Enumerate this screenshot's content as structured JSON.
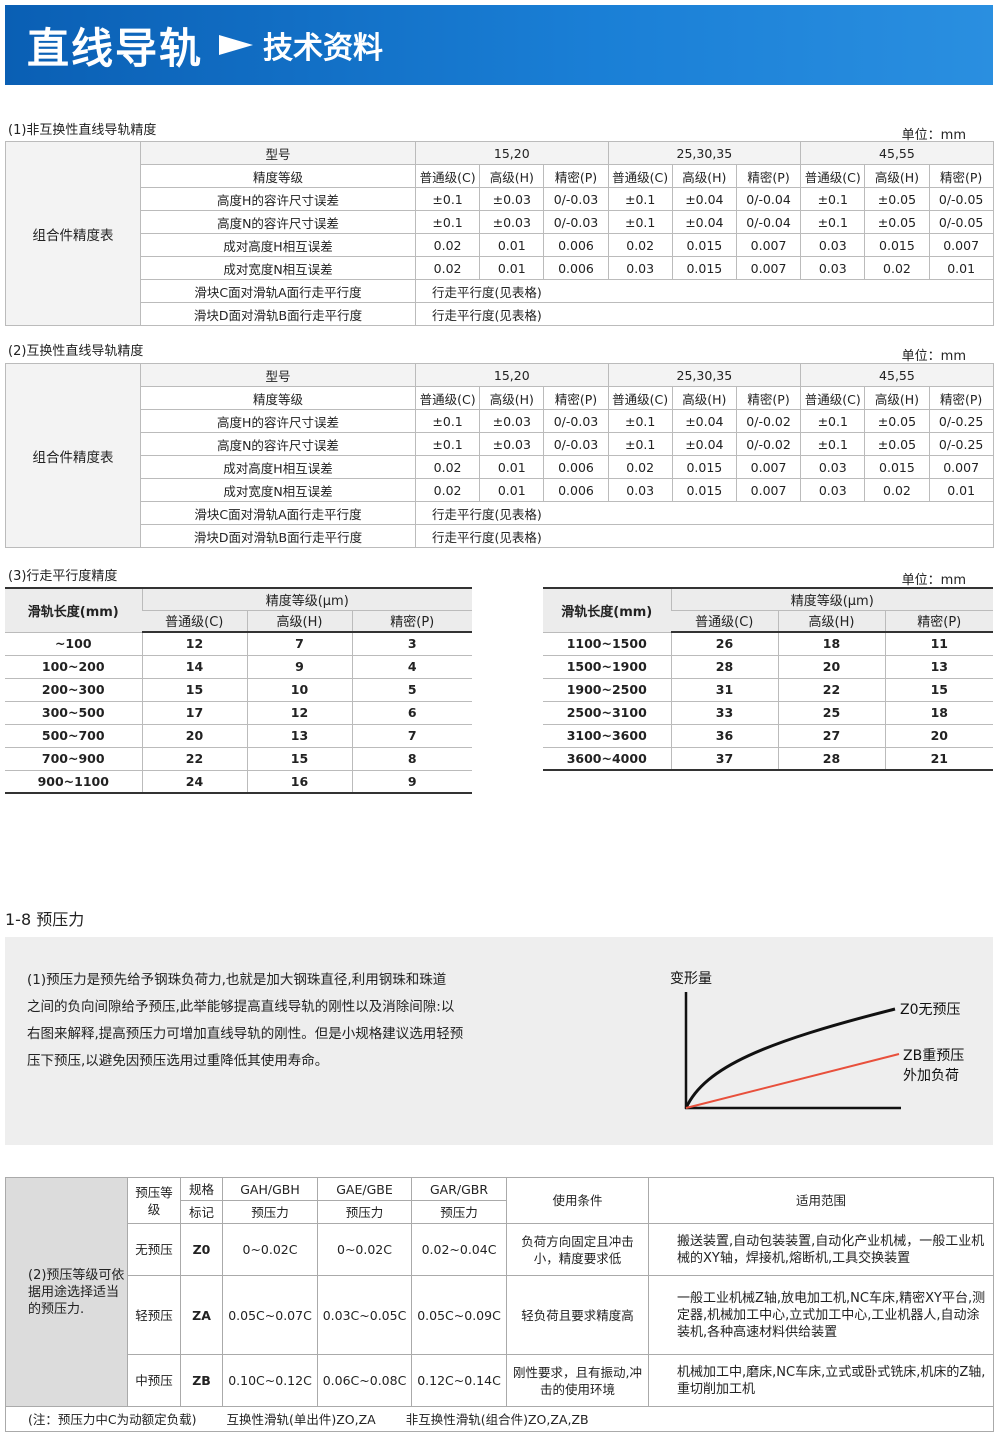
{
  "header": {
    "title": "直线导轨",
    "subtitle": "技术资料",
    "color": "#0a5fb4"
  },
  "unit": "单位：mm",
  "table1": {
    "caption": "(1)非互换性直线导轨精度",
    "side": "组合件精度表",
    "model_label": "型号",
    "models": [
      "15,20",
      "25,30,35",
      "45,55"
    ],
    "grade_label": "精度等级",
    "grades": [
      "普通级(C)",
      "高级(H)",
      "精密(P)",
      "普通级(C)",
      "高级(H)",
      "精密(P)",
      "普通级(C)",
      "高级(H)",
      "精密(P)"
    ],
    "rows": [
      {
        "label": "高度H的容许尺寸误差",
        "values": [
          "±0.1",
          "±0.03",
          "0/-0.03",
          "±0.1",
          "±0.04",
          "0/-0.04",
          "±0.1",
          "±0.05",
          "0/-0.05"
        ]
      },
      {
        "label": "高度N的容许尺寸误差",
        "values": [
          "±0.1",
          "±0.03",
          "0/-0.03",
          "±0.1",
          "±0.04",
          "0/-0.04",
          "±0.1",
          "±0.05",
          "0/-0.05"
        ]
      },
      {
        "label": "成对高度H相互误差",
        "values": [
          "0.02",
          "0.01",
          "0.006",
          "0.02",
          "0.015",
          "0.007",
          "0.03",
          "0.015",
          "0.007"
        ]
      },
      {
        "label": "成对宽度N相互误差",
        "values": [
          "0.02",
          "0.01",
          "0.006",
          "0.03",
          "0.015",
          "0.007",
          "0.03",
          "0.02",
          "0.01"
        ]
      }
    ],
    "text_rows": [
      {
        "label": "滑块C面对滑轨A面行走平行度",
        "value": "行走平行度(见表格)"
      },
      {
        "label": "滑块D面对滑轨B面行走平行度",
        "value": "行走平行度(见表格)"
      }
    ]
  },
  "table2": {
    "caption": "(2)互换性直线导轨精度",
    "side": "组合件精度表",
    "model_label": "型号",
    "models": [
      "15,20",
      "25,30,35",
      "45,55"
    ],
    "grade_label": "精度等级",
    "grades": [
      "普通级(C)",
      "高级(H)",
      "精密(P)",
      "普通级(C)",
      "高级(H)",
      "精密(P)",
      "普通级(C)",
      "高级(H)",
      "精密(P)"
    ],
    "rows": [
      {
        "label": "高度H的容许尺寸误差",
        "values": [
          "±0.1",
          "±0.03",
          "0/-0.03",
          "±0.1",
          "±0.04",
          "0/-0.02",
          "±0.1",
          "±0.05",
          "0/-0.25"
        ]
      },
      {
        "label": "高度N的容许尺寸误差",
        "values": [
          "±0.1",
          "±0.03",
          "0/-0.03",
          "±0.1",
          "±0.04",
          "0/-0.02",
          "±0.1",
          "±0.05",
          "0/-0.25"
        ]
      },
      {
        "label": "成对高度H相互误差",
        "values": [
          "0.02",
          "0.01",
          "0.006",
          "0.02",
          "0.015",
          "0.007",
          "0.03",
          "0.015",
          "0.007"
        ]
      },
      {
        "label": "成对宽度N相互误差",
        "values": [
          "0.02",
          "0.01",
          "0.006",
          "0.03",
          "0.015",
          "0.007",
          "0.03",
          "0.02",
          "0.01"
        ]
      }
    ],
    "text_rows": [
      {
        "label": "滑块C面对滑轨A面行走平行度",
        "value": "行走平行度(见表格)"
      },
      {
        "label": "滑块D面对滑轨B面行走平行度",
        "value": "行走平行度(见表格)"
      }
    ]
  },
  "table3": {
    "caption": "(3)行走平行度精度",
    "length_label": "滑轨长度(mm)",
    "grade_label": "精度等级(μm)",
    "grades": [
      "普通级(C)",
      "高级(H)",
      "精密(P)"
    ],
    "left": [
      [
        "~100",
        "12",
        "7",
        "3"
      ],
      [
        "100~200",
        "14",
        "9",
        "4"
      ],
      [
        "200~300",
        "15",
        "10",
        "5"
      ],
      [
        "300~500",
        "17",
        "12",
        "6"
      ],
      [
        "500~700",
        "20",
        "13",
        "7"
      ],
      [
        "700~900",
        "22",
        "15",
        "8"
      ],
      [
        "900~1100",
        "24",
        "16",
        "9"
      ]
    ],
    "right": [
      [
        "1100~1500",
        "26",
        "18",
        "11"
      ],
      [
        "1500~1900",
        "28",
        "20",
        "13"
      ],
      [
        "1900~2500",
        "31",
        "22",
        "15"
      ],
      [
        "2500~3100",
        "33",
        "25",
        "18"
      ],
      [
        "3100~3600",
        "36",
        "27",
        "20"
      ],
      [
        "3600~4000",
        "37",
        "28",
        "21"
      ]
    ]
  },
  "preload": {
    "title": "1-8 预压力",
    "text": [
      "(1)预压力是预先给予钢珠负荷力,也就是加大钢珠直径,利用钢珠和珠道",
      "之间的负向间隙给予预压,此举能够提高直线导轨的刚性以及消除间隙:以",
      "右图来解释,提高预压力可增加直线导轨的刚性。但是小规格建议选用轻预",
      "压下预压,以避免因预压选用过重降低其使用寿命。"
    ],
    "chart": {
      "ylabel": "变形量",
      "z0_label": "Z0无预压",
      "zb_label": [
        "ZB重预压",
        "外加负荷"
      ],
      "z0_color": "#111111",
      "zb_color": "#e8503c"
    }
  },
  "table4": {
    "side": "(2)预压等级可依据用途选择适当的预压力.",
    "h_grade": "预压等级",
    "h_spec": "规格",
    "h_mark": "标记",
    "series": [
      "GAH/GBH",
      "GAE/GBE",
      "GAR/GBR"
    ],
    "h_force": "预压力",
    "h_cond": "使用条件",
    "h_scope": "适用范围",
    "rows": [
      {
        "grade": "无预压",
        "mark": "Z0",
        "values": [
          "0~0.02C",
          "0~0.02C",
          "0.02~0.04C"
        ],
        "cond": "负荷方向固定且冲击小，精度要求低",
        "scope": "搬送装置,自动包装装置,自动化产业机械，一般工业机械的XY轴，焊接机,熔断机,工具交换装置"
      },
      {
        "grade": "轻预压",
        "mark": "ZA",
        "values": [
          "0.05C~0.07C",
          "0.03C~0.05C",
          "0.05C~0.09C"
        ],
        "cond": "轻负荷且要求精度高",
        "scope": "一般工业机械Z轴,放电加工机,NC车床,精密XY平台,测定器,机械加工中心,立式加工中心,工业机器人,自动涂装机,各种高速材料供给装置"
      },
      {
        "grade": "中预压",
        "mark": "ZB",
        "values": [
          "0.10C~0.12C",
          "0.06C~0.08C",
          "0.12C~0.14C"
        ],
        "cond": "刚性要求，且有振动,冲击的使用环境",
        "scope": "机械加工中,磨床,NC车床,立式或卧式铣床,机床的Z轴,重切削加工机"
      }
    ],
    "notes": [
      "(注：预压力中C为动额定负载)",
      "互换性滑轨(单出件)ZO,ZA",
      "非互换性滑轨(组合件)ZO,ZA,ZB"
    ]
  }
}
